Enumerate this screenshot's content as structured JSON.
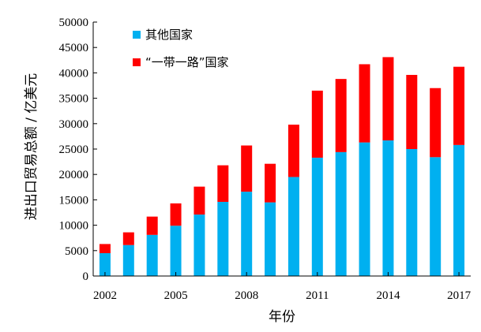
{
  "chart_data": {
    "type": "bar",
    "stacked": true,
    "x_tick_labels": [
      "2002",
      "2005",
      "2008",
      "2011",
      "2014",
      "2017"
    ],
    "categories": [
      "2002",
      "2003",
      "2004",
      "2005",
      "2006",
      "2007",
      "2008",
      "2009",
      "2010",
      "2011",
      "2012",
      "2013",
      "2014",
      "2015",
      "2016",
      "2017"
    ],
    "series": [
      {
        "name": "其他国家",
        "color": "#00b0f0",
        "values": [
          4500,
          6100,
          8100,
          9900,
          12100,
          14600,
          16600,
          14500,
          19500,
          23300,
          24400,
          26300,
          26700,
          25000,
          23400,
          25800
        ]
      },
      {
        "name": "“一带一路”国家",
        "color": "#ff0000",
        "values": [
          1800,
          2500,
          3600,
          4400,
          5500,
          7200,
          9100,
          7600,
          10300,
          13200,
          14400,
          15400,
          16400,
          14600,
          13600,
          15400
        ]
      }
    ],
    "xlabel": "年份",
    "ylabel": "进出口贸易总额 / 亿美元",
    "ylim": [
      0,
      50000
    ],
    "y_ticks": [
      0,
      5000,
      10000,
      15000,
      20000,
      25000,
      30000,
      35000,
      40000,
      45000,
      50000
    ],
    "grid": false,
    "legend": "top-left"
  }
}
